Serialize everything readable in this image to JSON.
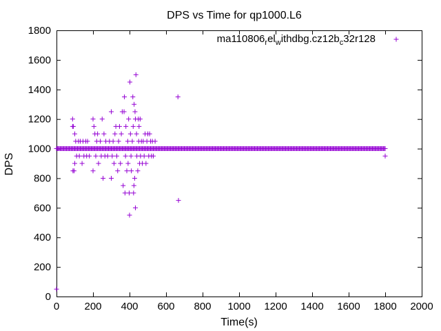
{
  "chart_data": {
    "type": "scatter",
    "title": "DPS vs Time for qp1000.L6",
    "xlabel": "Time(s)",
    "ylabel": "DPS",
    "xlim": [
      0,
      2000
    ],
    "ylim": [
      0,
      1800
    ],
    "xticks": [
      0,
      200,
      400,
      600,
      800,
      1000,
      1200,
      1400,
      1600,
      1800,
      2000
    ],
    "yticks": [
      0,
      200,
      400,
      600,
      800,
      1000,
      1200,
      1400,
      1600,
      1800
    ],
    "grid": false,
    "legend_position": "top-right",
    "marker": "plus",
    "series": [
      {
        "name": "ma110806_rel_withdbg.cz12b_c32r128",
        "legend_main": "ma110806",
        "legend_sub1": "r",
        "legend_mid1": "el",
        "legend_sub2": "w",
        "legend_mid2": "ithdbg.cz12b",
        "legend_sub3": "c",
        "legend_end": "32r128",
        "color": "#9400d3",
        "baseline": {
          "y": 1000,
          "x_start": 0,
          "x_end": 1800,
          "x_step": 5
        },
        "points": [
          [
            0,
            50
          ],
          [
            88,
            1200
          ],
          [
            88,
            1150
          ],
          [
            92,
            1150
          ],
          [
            90,
            850
          ],
          [
            96,
            850
          ],
          [
            100,
            900
          ],
          [
            100,
            1100
          ],
          [
            105,
            1050
          ],
          [
            110,
            950
          ],
          [
            120,
            1050
          ],
          [
            125,
            950
          ],
          [
            130,
            1050
          ],
          [
            140,
            900
          ],
          [
            145,
            1050
          ],
          [
            150,
            950
          ],
          [
            160,
            1050
          ],
          [
            165,
            950
          ],
          [
            170,
            1050
          ],
          [
            180,
            950
          ],
          [
            200,
            1200
          ],
          [
            205,
            1150
          ],
          [
            200,
            850
          ],
          [
            210,
            1100
          ],
          [
            215,
            950
          ],
          [
            220,
            1050
          ],
          [
            225,
            1100
          ],
          [
            230,
            900
          ],
          [
            240,
            1050
          ],
          [
            245,
            950
          ],
          [
            250,
            1200
          ],
          [
            255,
            800
          ],
          [
            260,
            1100
          ],
          [
            265,
            950
          ],
          [
            270,
            1050
          ],
          [
            280,
            950
          ],
          [
            290,
            1050
          ],
          [
            300,
            800
          ],
          [
            300,
            1250
          ],
          [
            305,
            950
          ],
          [
            310,
            1050
          ],
          [
            315,
            900
          ],
          [
            320,
            1100
          ],
          [
            325,
            1150
          ],
          [
            330,
            950
          ],
          [
            335,
            850
          ],
          [
            340,
            1050
          ],
          [
            345,
            1150
          ],
          [
            350,
            900
          ],
          [
            355,
            1100
          ],
          [
            360,
            1250
          ],
          [
            365,
            750
          ],
          [
            370,
            1250
          ],
          [
            372,
            1350
          ],
          [
            375,
            700
          ],
          [
            378,
            950
          ],
          [
            380,
            1150
          ],
          [
            385,
            850
          ],
          [
            390,
            1050
          ],
          [
            392,
            900
          ],
          [
            395,
            1200
          ],
          [
            398,
            700
          ],
          [
            400,
            550
          ],
          [
            402,
            1450
          ],
          [
            405,
            1100
          ],
          [
            408,
            950
          ],
          [
            410,
            850
          ],
          [
            415,
            1050
          ],
          [
            418,
            1350
          ],
          [
            420,
            1150
          ],
          [
            422,
            700
          ],
          [
            424,
            750
          ],
          [
            425,
            1300
          ],
          [
            428,
            800
          ],
          [
            430,
            1250
          ],
          [
            432,
            1200
          ],
          [
            432,
            600
          ],
          [
            435,
            1500
          ],
          [
            438,
            1100
          ],
          [
            440,
            950
          ],
          [
            445,
            850
          ],
          [
            448,
            1200
          ],
          [
            450,
            1050
          ],
          [
            452,
            1150
          ],
          [
            455,
            900
          ],
          [
            458,
            1200
          ],
          [
            460,
            950
          ],
          [
            465,
            1050
          ],
          [
            470,
            900
          ],
          [
            475,
            1050
          ],
          [
            480,
            950
          ],
          [
            485,
            1100
          ],
          [
            490,
            900
          ],
          [
            495,
            1050
          ],
          [
            500,
            1100
          ],
          [
            505,
            950
          ],
          [
            510,
            1100
          ],
          [
            515,
            1050
          ],
          [
            520,
            950
          ],
          [
            525,
            1050
          ],
          [
            530,
            950
          ],
          [
            540,
            1050
          ],
          [
            665,
            1350
          ],
          [
            668,
            650
          ],
          [
            1800,
            950
          ],
          [
            1800,
            1000
          ]
        ]
      }
    ]
  }
}
